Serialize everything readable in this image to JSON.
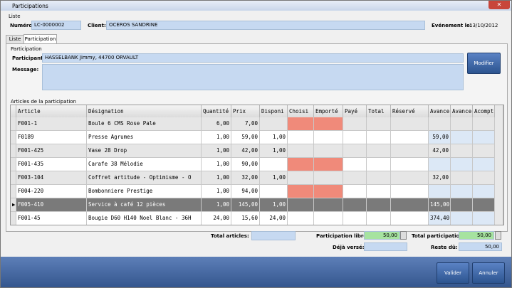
{
  "window": {
    "title": "Participations"
  },
  "liste": {
    "group_label": "Liste",
    "numero_label": "Numéro:",
    "numero": "LC-0000002",
    "client_label": "Client:",
    "client": "OCEROS SANDRINE",
    "evenement_label": "Evénement le:",
    "evenement": "13/10/2012"
  },
  "tabs": [
    "Liste",
    "Participation"
  ],
  "participation": {
    "group_label": "Participation",
    "participant_label": "Participant:",
    "participant": "HASSELBANK Jimmy, 44700 ORVAULT",
    "message_label": "Message:",
    "modify_button": "Modifier"
  },
  "table": {
    "label": "Articles de la participation",
    "columns": [
      "Article",
      "Désignation",
      "Quantité",
      "Prix",
      "Disponi",
      "Choisi",
      "Emporté",
      "Payé",
      "Total",
      "Réservé",
      "Avance",
      "Avance",
      "Acompt"
    ],
    "rows": [
      [
        "F001-1",
        "Boule 6 CMS Rose Pale",
        "6,00",
        "7,00",
        null,
        null,
        null,
        null,
        null,
        null,
        null,
        null,
        null
      ],
      [
        "F0189",
        "Presse Agrumes",
        "1,00",
        "59,00",
        "1,00",
        null,
        null,
        null,
        null,
        null,
        "59,00",
        null,
        null
      ],
      [
        "F001-425",
        "Vase 28 Drop",
        "1,00",
        "42,00",
        "1,00",
        null,
        null,
        null,
        null,
        null,
        "42,00",
        null,
        null
      ],
      [
        "F001-435",
        "Carafe 38 Mélodie",
        "1,00",
        "90,00",
        null,
        null,
        null,
        null,
        null,
        null,
        null,
        null,
        null
      ],
      [
        "F003-104",
        "Coffret artitude - Optimisme - O",
        "1,00",
        "32,00",
        "1,00",
        null,
        null,
        null,
        null,
        null,
        "32,00",
        null,
        null
      ],
      [
        "F004-220",
        "Bombonniere Prestige",
        "1,00",
        "94,00",
        null,
        null,
        null,
        null,
        null,
        null,
        null,
        null,
        null
      ],
      [
        "F005-410",
        "Service à café 12 pièces",
        "1,00",
        "145,00",
        "1,00",
        null,
        null,
        null,
        null,
        null,
        "145,00",
        null,
        null
      ],
      [
        "F001-45",
        "Bougie D60 H140 Noel Blanc - 36H",
        "24,00",
        "15,60",
        "24,00",
        null,
        null,
        null,
        null,
        null,
        "374,40",
        null,
        null
      ]
    ]
  },
  "footer": {
    "total_articles_label": "Total articles:",
    "participation_libre_label": "Participation libre:",
    "participation_libre": "50,00",
    "total_participation_label": "Total participation:",
    "total_participation": "50,00",
    "deja_verse_label": "Déjà versé:",
    "reste_du_label": "Reste dû:",
    "reste_du": "50,00"
  },
  "buttons": {
    "validate": "Valider",
    "cancel": "Annuler"
  }
}
